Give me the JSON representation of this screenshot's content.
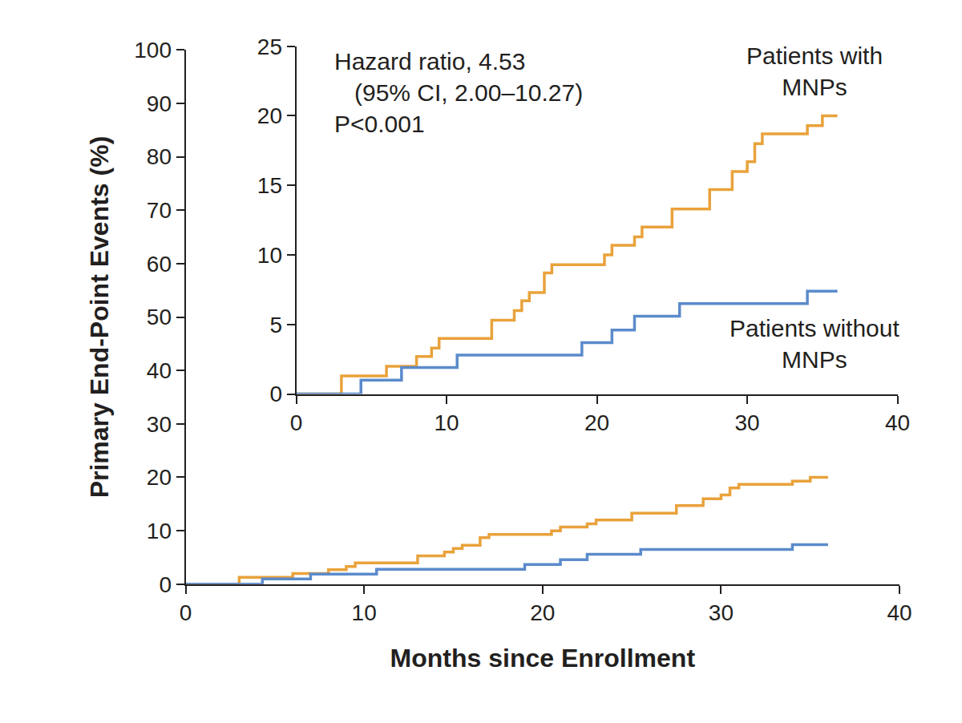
{
  "chart_data": [
    {
      "type": "line",
      "line_style": "step",
      "grid": false,
      "x_label": "Months since Enrollment",
      "y_label": "Primary End-Point Events (%)",
      "xlim": [
        0,
        40
      ],
      "xticks": [
        0,
        10,
        20,
        30,
        40
      ],
      "ylim": [
        0,
        100
      ],
      "yticks": [
        0,
        10,
        20,
        30,
        40,
        50,
        60,
        70,
        80,
        90,
        100
      ],
      "series": [
        {
          "color": "#E9A23B",
          "x": [
            0,
            3,
            6,
            8,
            9,
            9.5,
            13,
            14.5,
            15,
            15.5,
            16.5,
            17,
            20.5,
            21,
            22.5,
            23,
            25,
            27.5,
            29,
            30,
            30.5,
            31,
            34,
            35,
            36
          ],
          "values": [
            0,
            1.3,
            2.0,
            2.7,
            3.3,
            4.0,
            5.3,
            6.0,
            6.7,
            7.3,
            8.7,
            9.3,
            10.0,
            10.7,
            11.3,
            12.0,
            13.3,
            14.7,
            16.0,
            16.7,
            18.0,
            18.7,
            19.3,
            20.0,
            20.0
          ]
        },
        {
          "color": "#5B8BCB",
          "x": [
            0,
            4.3,
            7,
            10.7,
            19,
            21,
            22.5,
            25.5,
            34,
            36
          ],
          "values": [
            0,
            1.0,
            1.9,
            2.8,
            3.7,
            4.6,
            5.6,
            6.5,
            7.4,
            7.4
          ]
        }
      ]
    },
    {
      "type": "line",
      "line_style": "step",
      "grid": false,
      "xlim": [
        0,
        40
      ],
      "xticks": [
        0,
        10,
        20,
        30,
        40
      ],
      "ylim": [
        0,
        25
      ],
      "yticks": [
        0,
        5,
        10,
        15,
        20,
        25
      ],
      "annotations": [
        "Hazard ratio, 4.53",
        "(95% CI, 2.00–10.27)",
        "P<0.001"
      ],
      "series": [
        {
          "name": "Patients with MNPs",
          "color": "#E9A23B",
          "x": [
            0,
            3,
            6,
            8,
            9,
            9.5,
            13,
            14.5,
            15,
            15.5,
            16.5,
            17,
            20.5,
            21,
            22.5,
            23,
            25,
            27.5,
            29,
            30,
            30.5,
            31,
            34,
            35,
            36
          ],
          "values": [
            0,
            1.3,
            2.0,
            2.7,
            3.3,
            4.0,
            5.3,
            6.0,
            6.7,
            7.3,
            8.7,
            9.3,
            10.0,
            10.7,
            11.3,
            12.0,
            13.3,
            14.7,
            16.0,
            16.7,
            18.0,
            18.7,
            19.3,
            20.0,
            20.0
          ]
        },
        {
          "name": "Patients without MNPs",
          "color": "#5B8BCB",
          "x": [
            0,
            4.3,
            7,
            10.7,
            19,
            21,
            22.5,
            25.5,
            34,
            36
          ],
          "values": [
            0,
            1.0,
            1.9,
            2.8,
            3.7,
            4.6,
            5.6,
            6.5,
            7.4,
            7.4
          ]
        }
      ]
    }
  ]
}
